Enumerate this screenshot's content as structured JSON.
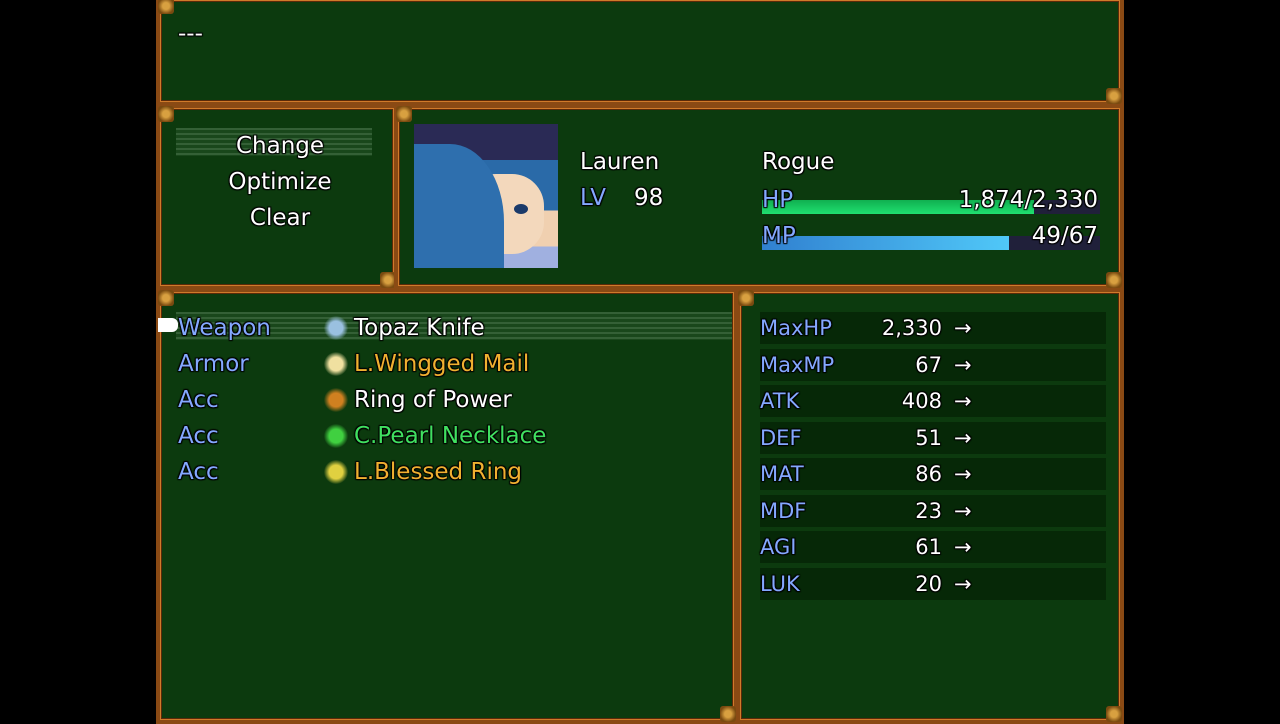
{
  "help": {
    "text": "---"
  },
  "commands": [
    {
      "label": "Change"
    },
    {
      "label": "Optimize"
    },
    {
      "label": "Clear"
    }
  ],
  "selected_command": "Change",
  "actor": {
    "name": "Lauren",
    "class": "Rogue",
    "level_label": "LV",
    "level": "98",
    "hp_label": "HP",
    "hp": "1,874/2,330",
    "hp_fraction": 0.804,
    "mp_label": "MP",
    "mp": "49/67",
    "mp_fraction": 0.731
  },
  "colors": {
    "hp_gauge": "#10d060",
    "mp_gauge": "#40b0f0",
    "rare_item": "#f0b030",
    "uncommon_item": "#40e060",
    "system_text": "#84a8ff"
  },
  "slots": [
    {
      "slot": "Weapon",
      "item": "Topaz Knife",
      "icon": "knife-icon",
      "color": "#ffffff"
    },
    {
      "slot": "Armor",
      "item": "L.Wingged Mail",
      "icon": "armor-icon",
      "color": "#f0b030"
    },
    {
      "slot": "Acc",
      "item": "Ring of Power",
      "icon": "ring-icon",
      "color": "#ffffff"
    },
    {
      "slot": "Acc",
      "item": "C.Pearl Necklace",
      "icon": "necklace-icon",
      "color": "#40e060"
    },
    {
      "slot": "Acc",
      "item": "L.Blessed Ring",
      "icon": "blessed-ring-icon",
      "color": "#f0b030"
    }
  ],
  "stats": [
    {
      "name": "MaxHP",
      "value": "2,330"
    },
    {
      "name": "MaxMP",
      "value": "67"
    },
    {
      "name": "ATK",
      "value": "408"
    },
    {
      "name": "DEF",
      "value": "51"
    },
    {
      "name": "MAT",
      "value": "86"
    },
    {
      "name": "MDF",
      "value": "23"
    },
    {
      "name": "AGI",
      "value": "61"
    },
    {
      "name": "LUK",
      "value": "20"
    }
  ],
  "arrow": "→"
}
